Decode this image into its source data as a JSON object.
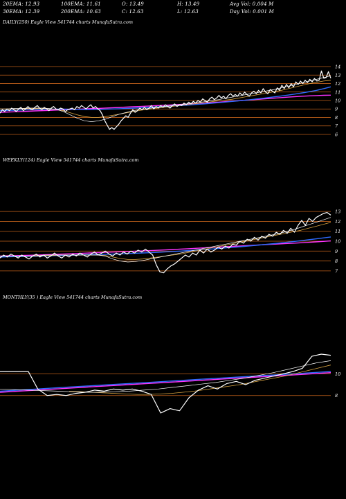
{
  "header": {
    "ema20": "20EMA: 12.93",
    "ema100": "100EMA: 11.61",
    "open": "O: 13.49",
    "high": "H: 13.49",
    "avg_vol": "Avg Vol: 0.004  M",
    "ema30": "30EMA: 12.39",
    "ema200": "200EMA: 10.63",
    "close": "C: 12.63",
    "low": "L: 12.63",
    "day_vol": "Day Vol: 0.001 M"
  },
  "colors": {
    "background": "#000000",
    "price": "#ffffff",
    "grid": "#c0601a",
    "ema_short": "#ffffff",
    "ema_mid": "#d9a441",
    "ema_long": "#2f6bff",
    "ema_200": "#ff33ff"
  },
  "panels": [
    {
      "label": "DAILY(250) Eagle  View  541744  charts MunafaSutra.com",
      "tick_labels": [
        "14",
        "13",
        "12",
        "11",
        "10",
        "9",
        "8",
        "7",
        "6"
      ]
    },
    {
      "label": "WEEKLY(124) Eagle  View  541744  charts MunafaSutra.com",
      "tick_labels": [
        "13",
        "12",
        "11",
        "10",
        "9",
        "8",
        "7"
      ]
    },
    {
      "label": "MONTHLY(35                  ) Eagle  View  541744  charts MunafaSutra.com",
      "tick_labels": [
        "10",
        "8"
      ]
    }
  ],
  "chart_data": [
    {
      "type": "line",
      "title": "DAILY(250) Eagle View 541744 charts MunafaSutra.com",
      "ylim": [
        5.5,
        14.5
      ],
      "yticks": [
        14,
        13,
        12,
        11,
        10,
        9,
        8,
        7,
        6
      ],
      "grid": true,
      "series": [
        {
          "role": "price",
          "values": [
            8.5,
            8.9,
            8.7,
            9.0,
            8.8,
            9.1,
            8.9,
            8.7,
            9.0,
            9.2,
            8.8,
            9.0,
            9.3,
            9.0,
            8.9,
            9.2,
            9.4,
            9.1,
            8.9,
            9.2,
            9.0,
            8.8,
            9.1,
            9.3,
            9.0,
            8.9,
            9.1,
            9.0,
            8.7,
            8.9,
            9.0,
            9.1,
            8.9,
            9.3,
            9.1,
            9.4,
            9.2,
            9.0,
            9.3,
            9.5,
            9.1,
            9.3,
            9.0,
            8.8,
            8.3,
            7.6,
            7.1,
            6.6,
            6.8,
            6.6,
            6.9,
            7.2,
            7.6,
            7.9,
            8.2,
            8.0,
            8.5,
            8.9,
            8.6,
            8.8,
            9.1,
            8.9,
            9.2,
            8.9,
            9.1,
            9.4,
            9.0,
            9.3,
            9.1,
            9.4,
            9.2,
            9.5,
            9.3,
            9.1,
            9.4,
            9.6,
            9.3,
            9.5,
            9.4,
            9.7,
            9.5,
            9.8,
            9.6,
            9.9,
            9.7,
            10.0,
            9.8,
            10.2,
            10.0,
            9.8,
            10.2,
            10.4,
            10.1,
            10.3,
            10.6,
            10.3,
            10.5,
            10.2,
            10.6,
            10.8,
            10.5,
            10.7,
            10.5,
            10.9,
            10.6,
            11.0,
            10.7,
            10.5,
            10.9,
            11.1,
            10.8,
            11.2,
            10.9,
            11.4,
            11.0,
            10.8,
            11.3,
            11.1,
            10.9,
            11.5,
            11.2,
            11.8,
            11.4,
            11.9,
            11.5,
            12.0,
            11.6,
            12.2,
            11.9,
            12.3,
            12.0,
            12.4,
            12.1,
            12.5,
            12.2,
            12.6,
            12.3,
            12.4,
            13.49,
            12.63,
            12.7,
            13.4,
            12.63
          ]
        },
        {
          "role": "ema20",
          "values": [
            9.0,
            9.0,
            9.05,
            9.05,
            9.1,
            9.1,
            9.1,
            9.05,
            8.95,
            8.7,
            8.3,
            7.9,
            7.6,
            7.5,
            7.6,
            7.8,
            8.1,
            8.4,
            8.6,
            8.8,
            8.95,
            9.05,
            9.15,
            9.25,
            9.35,
            9.45,
            9.55,
            9.65,
            9.75,
            9.85,
            10.0,
            10.1,
            10.25,
            10.4,
            10.55,
            10.7,
            10.85,
            11.0,
            11.15,
            11.3,
            11.5,
            11.7,
            11.9,
            12.1,
            12.3,
            12.5,
            12.7,
            12.93
          ]
        },
        {
          "role": "ema30",
          "values": [
            9.0,
            9.0,
            9.0,
            9.05,
            9.05,
            9.05,
            9.05,
            9.0,
            8.95,
            8.8,
            8.55,
            8.3,
            8.1,
            8.0,
            8.0,
            8.1,
            8.25,
            8.4,
            8.55,
            8.7,
            8.85,
            8.95,
            9.05,
            9.15,
            9.25,
            9.35,
            9.45,
            9.55,
            9.65,
            9.75,
            9.85,
            9.95,
            10.05,
            10.15,
            10.3,
            10.45,
            10.6,
            10.75,
            10.9,
            11.05,
            11.2,
            11.4,
            11.6,
            11.8,
            12.0,
            12.15,
            12.3,
            12.39
          ]
        },
        {
          "role": "ema100",
          "values": [
            8.8,
            8.82,
            8.85,
            8.87,
            8.9,
            8.92,
            8.95,
            8.97,
            8.98,
            8.98,
            8.97,
            8.95,
            8.94,
            8.94,
            8.95,
            8.97,
            9.0,
            9.03,
            9.07,
            9.1,
            9.14,
            9.18,
            9.22,
            9.27,
            9.32,
            9.37,
            9.42,
            9.48,
            9.54,
            9.6,
            9.67,
            9.74,
            9.81,
            9.89,
            9.97,
            10.05,
            10.14,
            10.23,
            10.33,
            10.43,
            10.54,
            10.65,
            10.77,
            10.9,
            11.05,
            11.2,
            11.4,
            11.61
          ]
        },
        {
          "role": "ema200",
          "values": [
            8.6,
            8.63,
            8.67,
            8.7,
            8.73,
            8.77,
            8.8,
            8.83,
            8.87,
            8.9,
            8.93,
            8.97,
            9.0,
            9.04,
            9.07,
            9.11,
            9.15,
            9.18,
            9.22,
            9.26,
            9.3,
            9.34,
            9.38,
            9.42,
            9.46,
            9.5,
            9.55,
            9.6,
            9.65,
            9.7,
            9.75,
            9.8,
            9.86,
            9.92,
            9.98,
            10.04,
            10.1,
            10.16,
            10.22,
            10.28,
            10.34,
            10.4,
            10.46,
            10.51,
            10.55,
            10.58,
            10.61,
            10.63
          ]
        }
      ]
    },
    {
      "type": "line",
      "title": "WEEKLY(124) Eagle View 541744 charts MunafaSutra.com",
      "ylim": [
        6.5,
        13.5
      ],
      "yticks": [
        13,
        12,
        11,
        10,
        9,
        8,
        7
      ],
      "grid": true,
      "series": [
        {
          "role": "price",
          "values": [
            8.3,
            8.6,
            8.4,
            8.7,
            8.5,
            8.3,
            8.6,
            8.4,
            8.2,
            8.5,
            8.7,
            8.4,
            8.6,
            8.3,
            8.5,
            8.8,
            8.5,
            8.3,
            8.6,
            8.4,
            8.7,
            8.5,
            8.8,
            8.6,
            8.4,
            8.7,
            8.9,
            8.6,
            8.8,
            9.0,
            8.7,
            8.5,
            8.8,
            8.6,
            8.9,
            8.7,
            9.0,
            8.8,
            9.1,
            8.9,
            9.2,
            8.9,
            8.6,
            7.6,
            6.9,
            6.8,
            7.2,
            7.5,
            7.7,
            8.0,
            8.3,
            8.6,
            8.4,
            8.8,
            8.6,
            9.1,
            8.8,
            9.2,
            8.9,
            9.1,
            9.4,
            9.2,
            9.5,
            9.3,
            9.7,
            9.6,
            10.0,
            9.8,
            10.2,
            10.0,
            10.4,
            10.1,
            10.5,
            10.3,
            10.7,
            10.5,
            10.9,
            10.7,
            11.1,
            10.8,
            11.3,
            10.9,
            11.6,
            12.1,
            11.6,
            12.3,
            12.0,
            12.4,
            12.6,
            12.8,
            12.9,
            12.63
          ]
        },
        {
          "role": "ema20",
          "values": [
            8.5,
            8.5,
            8.5,
            8.5,
            8.5,
            8.5,
            8.6,
            8.6,
            8.6,
            8.6,
            8.6,
            8.6,
            8.6,
            8.6,
            8.5,
            8.2,
            8.0,
            7.9,
            7.95,
            8.05,
            8.2,
            8.35,
            8.5,
            8.65,
            8.8,
            8.95,
            9.1,
            9.25,
            9.4,
            9.55,
            9.7,
            9.85,
            10.0,
            10.15,
            10.3,
            10.45,
            10.6,
            10.75,
            10.95,
            11.15,
            11.4,
            11.65,
            11.9,
            12.15,
            12.4
          ]
        },
        {
          "role": "ema30",
          "values": [
            8.5,
            8.5,
            8.5,
            8.5,
            8.5,
            8.55,
            8.55,
            8.55,
            8.6,
            8.6,
            8.6,
            8.6,
            8.6,
            8.6,
            8.55,
            8.4,
            8.25,
            8.15,
            8.15,
            8.2,
            8.3,
            8.4,
            8.5,
            8.6,
            8.7,
            8.85,
            9.0,
            9.15,
            9.3,
            9.45,
            9.6,
            9.75,
            9.9,
            10.05,
            10.2,
            10.35,
            10.5,
            10.65,
            10.8,
            10.95,
            11.1,
            11.3,
            11.5,
            11.7,
            11.9
          ]
        },
        {
          "role": "ema100",
          "values": [
            8.4,
            8.42,
            8.44,
            8.46,
            8.48,
            8.5,
            8.52,
            8.54,
            8.56,
            8.58,
            8.6,
            8.62,
            8.64,
            8.66,
            8.68,
            8.7,
            8.72,
            8.75,
            8.78,
            8.81,
            8.84,
            8.88,
            8.92,
            8.96,
            9.0,
            9.05,
            9.1,
            9.15,
            9.2,
            9.26,
            9.32,
            9.38,
            9.44,
            9.51,
            9.58,
            9.65,
            9.72,
            9.8,
            9.88,
            9.96,
            10.05,
            10.14,
            10.23,
            10.33,
            10.43
          ]
        },
        {
          "role": "ema200",
          "values": [
            8.5,
            8.52,
            8.54,
            8.56,
            8.58,
            8.6,
            8.63,
            8.66,
            8.69,
            8.72,
            8.75,
            8.78,
            8.81,
            8.84,
            8.87,
            8.9,
            8.93,
            8.96,
            8.99,
            9.02,
            9.05,
            9.08,
            9.12,
            9.16,
            9.2,
            9.24,
            9.28,
            9.32,
            9.36,
            9.4,
            9.44,
            9.48,
            9.52,
            9.56,
            9.6,
            9.64,
            9.68,
            9.72,
            9.76,
            9.8,
            9.84,
            9.88,
            9.93,
            9.98,
            10.03
          ]
        }
      ]
    },
    {
      "type": "line",
      "title": "MONTHLY(35) Eagle View 541744 charts MunafaSutra.com",
      "ylim": [
        5.5,
        12.5
      ],
      "yticks": [
        10,
        8
      ],
      "grid": true,
      "series": [
        {
          "role": "price",
          "values": [
            10.2,
            10.2,
            10.2,
            10.2,
            8.6,
            8.0,
            8.1,
            8.0,
            8.2,
            8.3,
            8.5,
            8.4,
            8.6,
            8.5,
            8.6,
            8.4,
            8.1,
            6.4,
            6.8,
            6.6,
            7.8,
            8.5,
            8.9,
            8.6,
            9.1,
            9.3,
            9.0,
            9.4,
            9.6,
            9.8,
            10.0,
            10.2,
            10.5,
            11.6,
            11.8,
            11.7
          ]
        },
        {
          "role": "ema20",
          "values": [
            8.6,
            8.55,
            8.5,
            8.45,
            8.4,
            8.35,
            8.3,
            8.3,
            8.35,
            8.4,
            8.5,
            8.6,
            8.75,
            8.9,
            9.05,
            9.2,
            9.4,
            9.6,
            9.85,
            10.1,
            10.4,
            10.7,
            11.0,
            11.2
          ]
        },
        {
          "role": "ema30",
          "values": [
            8.4,
            8.35,
            8.3,
            8.25,
            8.2,
            8.15,
            8.1,
            8.1,
            8.15,
            8.2,
            8.3,
            8.4,
            8.55,
            8.7,
            8.85,
            9.0,
            9.2,
            9.4,
            9.6,
            9.8,
            10.05,
            10.3,
            10.55,
            10.8
          ]
        },
        {
          "role": "ema100",
          "values": [
            8.4,
            8.5,
            8.6,
            8.7,
            8.8,
            8.9,
            9.0,
            9.1,
            9.2,
            9.3,
            9.4,
            9.5,
            9.6,
            9.7,
            9.8,
            9.9,
            10.0,
            10.1,
            10.2
          ]
        },
        {
          "role": "ema200",
          "values": [
            8.3,
            8.4,
            8.5,
            8.6,
            8.7,
            8.8,
            8.9,
            9.0,
            9.1,
            9.2,
            9.3,
            9.4,
            9.5,
            9.6,
            9.7,
            9.8,
            9.9,
            10.0,
            10.1
          ]
        }
      ]
    }
  ]
}
